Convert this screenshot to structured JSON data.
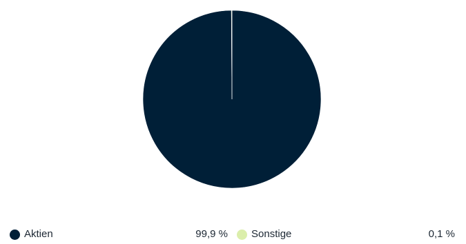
{
  "chart_data": {
    "type": "pie",
    "categories": [
      "Aktien",
      "Sonstige"
    ],
    "values": [
      99.9,
      0.1
    ],
    "colors": [
      "#001f37",
      "#dbeeab"
    ],
    "value_labels": [
      "99,9 %",
      "0,1 %"
    ],
    "legend_position": "bottom"
  }
}
